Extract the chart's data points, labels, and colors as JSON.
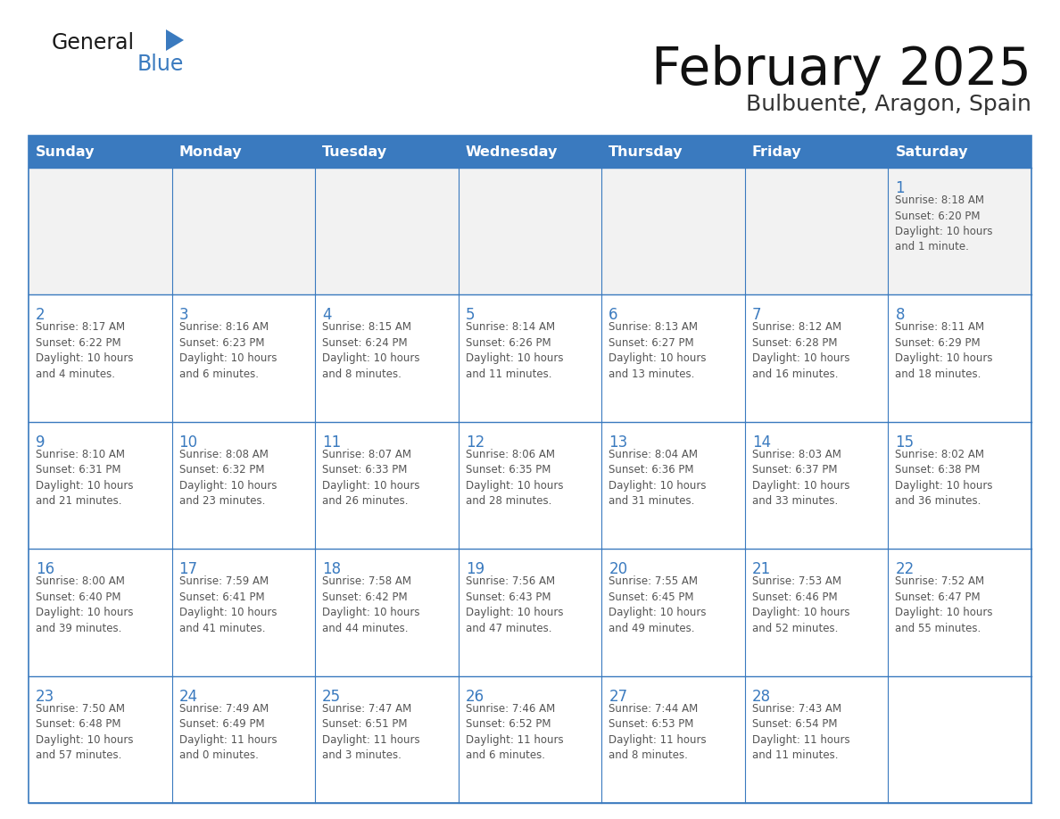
{
  "title": "February 2025",
  "subtitle": "Bulbuente, Aragon, Spain",
  "header_color": "#3a7abf",
  "header_text_color": "#ffffff",
  "days_of_week": [
    "Sunday",
    "Monday",
    "Tuesday",
    "Wednesday",
    "Thursday",
    "Friday",
    "Saturday"
  ],
  "background_color": "#ffffff",
  "cell_border_color": "#3a7abf",
  "day_number_color": "#3a7abf",
  "info_text_color": "#555555",
  "logo_general_color": "#1a1a1a",
  "logo_blue_color": "#3a7abf",
  "weeks": [
    [
      {
        "day": null,
        "info": ""
      },
      {
        "day": null,
        "info": ""
      },
      {
        "day": null,
        "info": ""
      },
      {
        "day": null,
        "info": ""
      },
      {
        "day": null,
        "info": ""
      },
      {
        "day": null,
        "info": ""
      },
      {
        "day": 1,
        "info": "Sunrise: 8:18 AM\nSunset: 6:20 PM\nDaylight: 10 hours\nand 1 minute."
      }
    ],
    [
      {
        "day": 2,
        "info": "Sunrise: 8:17 AM\nSunset: 6:22 PM\nDaylight: 10 hours\nand 4 minutes."
      },
      {
        "day": 3,
        "info": "Sunrise: 8:16 AM\nSunset: 6:23 PM\nDaylight: 10 hours\nand 6 minutes."
      },
      {
        "day": 4,
        "info": "Sunrise: 8:15 AM\nSunset: 6:24 PM\nDaylight: 10 hours\nand 8 minutes."
      },
      {
        "day": 5,
        "info": "Sunrise: 8:14 AM\nSunset: 6:26 PM\nDaylight: 10 hours\nand 11 minutes."
      },
      {
        "day": 6,
        "info": "Sunrise: 8:13 AM\nSunset: 6:27 PM\nDaylight: 10 hours\nand 13 minutes."
      },
      {
        "day": 7,
        "info": "Sunrise: 8:12 AM\nSunset: 6:28 PM\nDaylight: 10 hours\nand 16 minutes."
      },
      {
        "day": 8,
        "info": "Sunrise: 8:11 AM\nSunset: 6:29 PM\nDaylight: 10 hours\nand 18 minutes."
      }
    ],
    [
      {
        "day": 9,
        "info": "Sunrise: 8:10 AM\nSunset: 6:31 PM\nDaylight: 10 hours\nand 21 minutes."
      },
      {
        "day": 10,
        "info": "Sunrise: 8:08 AM\nSunset: 6:32 PM\nDaylight: 10 hours\nand 23 minutes."
      },
      {
        "day": 11,
        "info": "Sunrise: 8:07 AM\nSunset: 6:33 PM\nDaylight: 10 hours\nand 26 minutes."
      },
      {
        "day": 12,
        "info": "Sunrise: 8:06 AM\nSunset: 6:35 PM\nDaylight: 10 hours\nand 28 minutes."
      },
      {
        "day": 13,
        "info": "Sunrise: 8:04 AM\nSunset: 6:36 PM\nDaylight: 10 hours\nand 31 minutes."
      },
      {
        "day": 14,
        "info": "Sunrise: 8:03 AM\nSunset: 6:37 PM\nDaylight: 10 hours\nand 33 minutes."
      },
      {
        "day": 15,
        "info": "Sunrise: 8:02 AM\nSunset: 6:38 PM\nDaylight: 10 hours\nand 36 minutes."
      }
    ],
    [
      {
        "day": 16,
        "info": "Sunrise: 8:00 AM\nSunset: 6:40 PM\nDaylight: 10 hours\nand 39 minutes."
      },
      {
        "day": 17,
        "info": "Sunrise: 7:59 AM\nSunset: 6:41 PM\nDaylight: 10 hours\nand 41 minutes."
      },
      {
        "day": 18,
        "info": "Sunrise: 7:58 AM\nSunset: 6:42 PM\nDaylight: 10 hours\nand 44 minutes."
      },
      {
        "day": 19,
        "info": "Sunrise: 7:56 AM\nSunset: 6:43 PM\nDaylight: 10 hours\nand 47 minutes."
      },
      {
        "day": 20,
        "info": "Sunrise: 7:55 AM\nSunset: 6:45 PM\nDaylight: 10 hours\nand 49 minutes."
      },
      {
        "day": 21,
        "info": "Sunrise: 7:53 AM\nSunset: 6:46 PM\nDaylight: 10 hours\nand 52 minutes."
      },
      {
        "day": 22,
        "info": "Sunrise: 7:52 AM\nSunset: 6:47 PM\nDaylight: 10 hours\nand 55 minutes."
      }
    ],
    [
      {
        "day": 23,
        "info": "Sunrise: 7:50 AM\nSunset: 6:48 PM\nDaylight: 10 hours\nand 57 minutes."
      },
      {
        "day": 24,
        "info": "Sunrise: 7:49 AM\nSunset: 6:49 PM\nDaylight: 11 hours\nand 0 minutes."
      },
      {
        "day": 25,
        "info": "Sunrise: 7:47 AM\nSunset: 6:51 PM\nDaylight: 11 hours\nand 3 minutes."
      },
      {
        "day": 26,
        "info": "Sunrise: 7:46 AM\nSunset: 6:52 PM\nDaylight: 11 hours\nand 6 minutes."
      },
      {
        "day": 27,
        "info": "Sunrise: 7:44 AM\nSunset: 6:53 PM\nDaylight: 11 hours\nand 8 minutes."
      },
      {
        "day": 28,
        "info": "Sunrise: 7:43 AM\nSunset: 6:54 PM\nDaylight: 11 hours\nand 11 minutes."
      },
      {
        "day": null,
        "info": ""
      }
    ]
  ]
}
